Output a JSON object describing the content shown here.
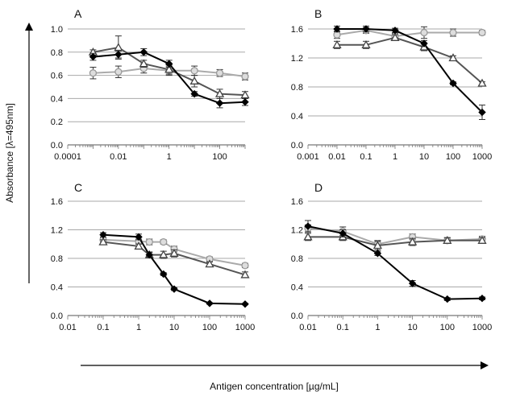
{
  "figure": {
    "ylabel": "Absorbance [λ=495nm]",
    "xlabel": "Antigen concentration  [µg/mL]"
  },
  "chart_data": [
    {
      "type": "line",
      "panel": "A",
      "xscale": "log",
      "xlim": [
        0.0001,
        1000
      ],
      "ylim": [
        0,
        1.0
      ],
      "xticks": [
        "0.0001",
        "0.01",
        "1",
        "100"
      ],
      "yticks": [
        "0.0",
        "0.2",
        "0.4",
        "0.6",
        "0.8",
        "1.0"
      ],
      "grid": "horizontal",
      "series": [
        {
          "color": "#000000",
          "marker": "diamond",
          "x": [
            0.001,
            0.01,
            0.1,
            1,
            10,
            100,
            1000
          ],
          "y": [
            0.76,
            0.78,
            0.8,
            0.7,
            0.44,
            0.36,
            0.37
          ],
          "err": [
            0.03,
            0.03,
            0.03,
            0.03,
            0.02,
            0.04,
            0.03
          ]
        },
        {
          "color": "#555555",
          "marker": "triangle",
          "x": [
            0.001,
            0.01,
            0.1,
            1,
            10,
            100,
            1000
          ],
          "y": [
            0.8,
            0.84,
            0.7,
            0.65,
            0.55,
            0.44,
            0.43
          ],
          "err": [
            0.02,
            0.1,
            0.03,
            0.04,
            0.05,
            0.04,
            0.03
          ]
        },
        {
          "color": "#aaaaaa",
          "marker": "circle",
          "x": [
            0.001,
            0.01,
            0.1,
            1,
            10,
            100,
            1000
          ],
          "y": [
            0.62,
            0.63,
            0.66,
            0.64,
            0.64,
            0.62,
            0.59
          ],
          "err": [
            0.05,
            0.05,
            0.04,
            0.04,
            0.04,
            0.03,
            0.03
          ]
        }
      ]
    },
    {
      "type": "line",
      "panel": "B",
      "xscale": "log",
      "xlim": [
        0.001,
        1000
      ],
      "ylim": [
        0,
        1.6
      ],
      "xticks": [
        "0.001",
        "0.01",
        "0.1",
        "1",
        "10",
        "100",
        "1000"
      ],
      "yticks": [
        "0.0",
        "0.4",
        "0.8",
        "1.2",
        "1.6"
      ],
      "grid": "horizontal",
      "series": [
        {
          "color": "#000000",
          "marker": "diamond",
          "x": [
            0.01,
            0.1,
            1,
            10,
            100,
            1000
          ],
          "y": [
            1.6,
            1.6,
            1.58,
            1.4,
            0.85,
            0.45
          ],
          "err": [
            0.04,
            0.04,
            0.03,
            0.04,
            0.02,
            0.1
          ]
        },
        {
          "color": "#555555",
          "marker": "triangle",
          "x": [
            0.01,
            0.1,
            1,
            10,
            100,
            1000
          ],
          "y": [
            1.38,
            1.38,
            1.48,
            1.35,
            1.2,
            0.85
          ],
          "err": [
            0.05,
            0.05,
            0.04,
            0.05,
            0.03,
            0.02
          ]
        },
        {
          "color": "#aaaaaa",
          "marker": "circle",
          "x": [
            0.01,
            0.1,
            1,
            10,
            100,
            1000
          ],
          "y": [
            1.52,
            1.58,
            1.5,
            1.55,
            1.55,
            1.55
          ],
          "err": [
            0.05,
            0.04,
            0.04,
            0.08,
            0.05,
            0.03
          ]
        }
      ]
    },
    {
      "type": "line",
      "panel": "C",
      "xscale": "log",
      "xlim": [
        0.01,
        1000
      ],
      "ylim": [
        0,
        1.6
      ],
      "xticks": [
        "0.01",
        "0.1",
        "1",
        "10",
        "100",
        "1000"
      ],
      "yticks": [
        "0.0",
        "0.4",
        "0.8",
        "1.2",
        "1.6"
      ],
      "grid": "horizontal",
      "series": [
        {
          "color": "#000000",
          "marker": "diamond",
          "x": [
            0.1,
            1,
            2,
            5,
            10,
            100,
            1000
          ],
          "y": [
            1.13,
            1.1,
            0.85,
            0.58,
            0.37,
            0.17,
            0.16
          ],
          "err": [
            0.03,
            0.04,
            0.03,
            0.02,
            0.02,
            0.01,
            0.01
          ]
        },
        {
          "color": "#555555",
          "marker": "triangle",
          "x": [
            0.1,
            1,
            2,
            5,
            10,
            100,
            1000
          ],
          "y": [
            1.03,
            0.97,
            0.85,
            0.85,
            0.87,
            0.72,
            0.57
          ],
          "err": [
            0.03,
            0.03,
            0.04,
            0.05,
            0.05,
            0.03,
            0.04
          ]
        },
        {
          "color": "#aaaaaa",
          "marker": "circle",
          "x": [
            0.1,
            1,
            2,
            5,
            10,
            100,
            1000
          ],
          "y": [
            1.06,
            1.04,
            1.03,
            1.03,
            0.93,
            0.79,
            0.7
          ],
          "err": [
            0.03,
            0.03,
            0.04,
            0.03,
            0.04,
            0.03,
            0.03
          ]
        }
      ]
    },
    {
      "type": "line",
      "panel": "D",
      "xscale": "log",
      "xlim": [
        0.01,
        1000
      ],
      "ylim": [
        0,
        1.6
      ],
      "xticks": [
        "0.01",
        "0.1",
        "1",
        "10",
        "100",
        "1000"
      ],
      "yticks": [
        "0.0",
        "0.4",
        "0.8",
        "1.2",
        "1.6"
      ],
      "grid": "horizontal",
      "series": [
        {
          "color": "#000000",
          "marker": "diamond",
          "x": [
            0.01,
            0.1,
            1,
            10,
            100,
            1000
          ],
          "y": [
            1.25,
            1.15,
            0.87,
            0.45,
            0.23,
            0.24
          ],
          "err": [
            0.08,
            0.05,
            0.03,
            0.04,
            0.02,
            0.02
          ]
        },
        {
          "color": "#555555",
          "marker": "triangle",
          "x": [
            0.01,
            0.1,
            1,
            10,
            100,
            1000
          ],
          "y": [
            1.1,
            1.1,
            0.98,
            1.03,
            1.05,
            1.05
          ],
          "err": [
            0.05,
            0.05,
            0.06,
            0.05,
            0.04,
            0.04
          ]
        },
        {
          "color": "#aaaaaa",
          "marker": "circle",
          "x": [
            0.01,
            0.1,
            1,
            10,
            100,
            1000
          ],
          "y": [
            1.22,
            1.18,
            1.0,
            1.1,
            1.05,
            1.07
          ],
          "err": [
            0.05,
            0.06,
            0.05,
            0.04,
            0.04,
            0.04
          ]
        }
      ]
    }
  ]
}
